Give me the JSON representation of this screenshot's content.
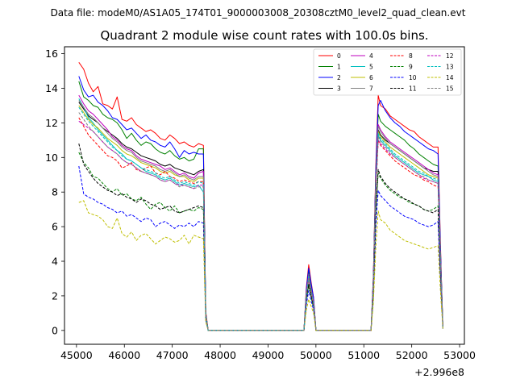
{
  "suptitle": "Data file: modeM0/AS1A05_174T01_9000003008_20308cztM0_level2_quad_clean.evt",
  "chart_data": {
    "type": "line",
    "title": "Quadrant 2 module wise count rates with 100.0s bins.",
    "xlabel": "",
    "ylabel": "",
    "x_offset_label": "+2.996e8",
    "xlim": [
      44750,
      53100
    ],
    "ylim": [
      -0.8,
      16.4
    ],
    "x_ticks": [
      45000,
      46000,
      47000,
      48000,
      49000,
      50000,
      51000,
      52000,
      53000
    ],
    "x_tick_labels": [
      "45000",
      "46000",
      "47000",
      "48000",
      "49000",
      "50000",
      "51000",
      "52000",
      "53000"
    ],
    "y_ticks": [
      0,
      2,
      4,
      6,
      8,
      10,
      12,
      14,
      16
    ],
    "y_tick_labels": [
      "0",
      "2",
      "4",
      "6",
      "8",
      "10",
      "12",
      "14",
      "16"
    ],
    "x": [
      45050,
      45150,
      45250,
      45350,
      45450,
      45550,
      45650,
      45750,
      45850,
      45950,
      46050,
      46150,
      46250,
      46350,
      46450,
      46550,
      46650,
      46750,
      46850,
      46950,
      47050,
      47150,
      47250,
      47350,
      47450,
      47550,
      47650,
      47700,
      47750,
      47800,
      47850,
      49750,
      49800,
      49850,
      49900,
      49950,
      50000,
      50050,
      51150,
      51200,
      51250,
      51300,
      51350,
      51450,
      51550,
      51650,
      51750,
      51850,
      51950,
      52050,
      52150,
      52250,
      52350,
      52450,
      52550,
      52600,
      52620,
      52650
    ],
    "series": [
      {
        "name": "0",
        "color": "#ff0000",
        "dash": "solid",
        "values": [
          15.5,
          15.1,
          14.3,
          13.8,
          14.1,
          13.1,
          13.0,
          12.8,
          13.5,
          12.2,
          12.1,
          12.3,
          11.9,
          11.7,
          11.5,
          11.6,
          11.4,
          11.1,
          11.0,
          11.3,
          11.1,
          10.8,
          10.9,
          10.7,
          10.6,
          10.8,
          10.7,
          1.1,
          0.0,
          0.0,
          0.0,
          0.0,
          2.5,
          3.8,
          2.8,
          1.9,
          0.0,
          0.0,
          0.0,
          3.2,
          9.5,
          13.6,
          13.0,
          12.8,
          12.4,
          12.2,
          12.0,
          11.8,
          11.6,
          11.5,
          11.2,
          11.0,
          10.8,
          10.6,
          10.6,
          5.0,
          3.0,
          0.2
        ]
      },
      {
        "name": "1",
        "color": "#008000",
        "dash": "solid",
        "values": [
          14.4,
          13.5,
          13.3,
          13.0,
          12.9,
          12.5,
          12.3,
          12.2,
          12.0,
          11.6,
          11.1,
          11.4,
          11.0,
          10.7,
          10.9,
          10.8,
          10.5,
          10.3,
          10.2,
          10.4,
          10.1,
          9.9,
          10.0,
          9.8,
          9.9,
          10.5,
          10.5,
          1.0,
          0.0,
          0.0,
          0.0,
          0.0,
          2.3,
          3.5,
          2.6,
          1.8,
          0.0,
          0.0,
          0.0,
          3.0,
          9.0,
          12.5,
          12.1,
          11.8,
          11.6,
          11.4,
          11.2,
          11.0,
          10.7,
          10.5,
          10.2,
          10.0,
          9.8,
          9.6,
          9.5,
          4.6,
          2.8,
          0.2
        ]
      },
      {
        "name": "2",
        "color": "#0000ff",
        "dash": "solid",
        "values": [
          14.7,
          13.9,
          13.5,
          13.6,
          13.2,
          13.0,
          12.7,
          12.3,
          12.2,
          11.9,
          11.6,
          11.7,
          11.4,
          11.1,
          11.3,
          11.0,
          10.9,
          10.7,
          10.6,
          10.9,
          10.5,
          10.0,
          10.4,
          10.2,
          10.3,
          10.2,
          10.2,
          1.0,
          0.0,
          0.0,
          0.0,
          0.0,
          2.4,
          3.6,
          2.7,
          1.9,
          0.0,
          0.0,
          0.0,
          3.1,
          9.2,
          13.0,
          13.3,
          12.7,
          12.3,
          12.0,
          11.8,
          11.5,
          11.3,
          11.1,
          10.9,
          10.7,
          10.5,
          10.4,
          10.2,
          4.8,
          2.9,
          0.2
        ]
      },
      {
        "name": "3",
        "color": "#000000",
        "dash": "solid",
        "values": [
          13.2,
          12.8,
          12.4,
          12.2,
          12.0,
          11.7,
          11.5,
          11.3,
          11.1,
          10.8,
          10.6,
          10.5,
          10.3,
          10.1,
          10.0,
          9.9,
          9.8,
          9.6,
          9.5,
          9.6,
          9.4,
          9.3,
          9.2,
          9.1,
          9.0,
          9.2,
          9.3,
          0.9,
          0.0,
          0.0,
          0.0,
          0.0,
          2.1,
          3.1,
          2.4,
          1.6,
          0.0,
          0.0,
          0.0,
          2.8,
          8.5,
          11.6,
          11.3,
          11.0,
          10.8,
          10.6,
          10.4,
          10.2,
          10.0,
          9.8,
          9.6,
          9.4,
          9.3,
          9.2,
          9.2,
          4.3,
          2.6,
          0.2
        ]
      },
      {
        "name": "4",
        "color": "#bf00bf",
        "dash": "solid",
        "values": [
          13.6,
          13.1,
          12.7,
          12.5,
          12.2,
          11.9,
          11.6,
          11.2,
          11.0,
          10.7,
          10.5,
          10.4,
          10.1,
          9.9,
          9.8,
          9.7,
          9.6,
          9.5,
          9.3,
          9.4,
          9.2,
          9.0,
          9.1,
          8.9,
          8.8,
          9.1,
          9.2,
          0.9,
          0.0,
          0.0,
          0.0,
          0.0,
          2.2,
          3.2,
          2.4,
          1.7,
          0.0,
          0.0,
          0.0,
          2.9,
          8.6,
          11.9,
          11.6,
          11.2,
          10.9,
          10.7,
          10.5,
          10.3,
          10.1,
          9.9,
          9.7,
          9.5,
          9.3,
          9.1,
          9.0,
          4.3,
          2.6,
          0.2
        ]
      },
      {
        "name": "5",
        "color": "#00bfbf",
        "dash": "solid",
        "values": [
          13.4,
          12.9,
          12.3,
          12.0,
          11.6,
          11.3,
          11.0,
          10.7,
          10.4,
          10.2,
          9.9,
          9.8,
          9.6,
          9.4,
          9.2,
          9.1,
          9.0,
          8.8,
          8.7,
          8.8,
          8.6,
          8.4,
          8.5,
          8.4,
          8.3,
          8.4,
          8.0,
          0.8,
          0.0,
          0.0,
          0.0,
          0.0,
          2.0,
          3.0,
          2.3,
          1.6,
          0.0,
          0.0,
          0.0,
          2.7,
          8.2,
          11.3,
          11.0,
          10.7,
          10.4,
          10.1,
          9.9,
          9.7,
          9.5,
          9.3,
          9.1,
          9.0,
          8.9,
          8.7,
          8.6,
          4.1,
          2.5,
          0.2
        ]
      },
      {
        "name": "6",
        "color": "#bfbf00",
        "dash": "solid",
        "values": [
          13.0,
          12.6,
          12.2,
          11.9,
          11.7,
          11.4,
          11.1,
          10.9,
          10.7,
          10.4,
          10.2,
          10.1,
          9.9,
          9.7,
          9.6,
          9.5,
          9.4,
          9.2,
          9.1,
          9.2,
          9.0,
          8.9,
          8.9,
          8.7,
          8.6,
          8.8,
          8.8,
          0.9,
          0.0,
          0.0,
          0.0,
          0.0,
          2.1,
          3.1,
          2.3,
          1.6,
          0.0,
          0.0,
          0.0,
          2.8,
          8.4,
          11.5,
          11.2,
          10.9,
          10.6,
          10.4,
          10.2,
          10.0,
          9.8,
          9.6,
          9.4,
          9.2,
          9.0,
          8.9,
          8.8,
          4.2,
          2.5,
          0.2
        ]
      },
      {
        "name": "7",
        "color": "#808080",
        "dash": "solid",
        "values": [
          13.3,
          12.9,
          12.5,
          12.3,
          12.0,
          11.7,
          11.4,
          11.1,
          10.9,
          10.6,
          10.4,
          10.3,
          10.0,
          9.8,
          9.7,
          9.6,
          9.5,
          9.3,
          9.2,
          9.3,
          9.1,
          8.9,
          9.0,
          8.8,
          8.7,
          8.9,
          8.9,
          0.9,
          0.0,
          0.0,
          0.0,
          0.0,
          2.1,
          3.2,
          2.4,
          1.6,
          0.0,
          0.0,
          0.0,
          2.8,
          8.5,
          11.8,
          11.5,
          11.1,
          10.8,
          10.6,
          10.4,
          10.2,
          10.0,
          9.8,
          9.6,
          9.4,
          9.2,
          9.0,
          8.9,
          4.2,
          2.6,
          0.2
        ]
      },
      {
        "name": "8",
        "color": "#ff0000",
        "dash": "dashed",
        "values": [
          12.3,
          11.8,
          11.3,
          11.0,
          10.7,
          10.4,
          10.1,
          10.0,
          9.8,
          9.4,
          9.5,
          9.7,
          9.3,
          9.2,
          9.4,
          9.5,
          9.1,
          9.0,
          9.2,
          8.9,
          8.8,
          8.6,
          8.7,
          8.6,
          8.5,
          8.6,
          8.6,
          0.8,
          0.0,
          0.0,
          0.0,
          0.0,
          2.0,
          3.0,
          2.2,
          1.5,
          0.0,
          0.0,
          0.0,
          2.6,
          8.0,
          11.0,
          10.7,
          10.4,
          10.1,
          9.8,
          9.6,
          9.4,
          9.2,
          9.0,
          8.9,
          8.7,
          8.6,
          8.4,
          8.3,
          4.0,
          2.4,
          0.2
        ]
      },
      {
        "name": "9",
        "color": "#008000",
        "dash": "dashed",
        "values": [
          10.3,
          9.7,
          9.4,
          8.9,
          8.8,
          8.5,
          8.2,
          8.0,
          8.2,
          7.8,
          7.9,
          7.6,
          7.5,
          7.7,
          7.3,
          7.0,
          7.3,
          7.4,
          7.1,
          6.9,
          7.2,
          6.8,
          6.9,
          7.0,
          6.9,
          7.1,
          7.0,
          0.7,
          0.0,
          0.0,
          0.0,
          0.0,
          1.7,
          2.6,
          1.9,
          1.3,
          0.0,
          0.0,
          0.0,
          2.2,
          6.8,
          9.1,
          8.8,
          8.4,
          8.1,
          7.9,
          7.7,
          7.6,
          7.4,
          7.3,
          7.2,
          7.0,
          6.9,
          7.0,
          7.2,
          3.4,
          2.1,
          0.2
        ]
      },
      {
        "name": "10",
        "color": "#0000ff",
        "dash": "dashed",
        "values": [
          9.5,
          7.9,
          7.7,
          7.6,
          7.4,
          7.3,
          7.1,
          7.0,
          6.8,
          6.9,
          6.6,
          6.7,
          6.5,
          6.3,
          6.5,
          6.4,
          6.0,
          6.2,
          6.3,
          6.1,
          5.9,
          6.1,
          6.0,
          6.2,
          6.0,
          6.3,
          6.2,
          0.6,
          0.0,
          0.0,
          0.0,
          0.0,
          1.5,
          2.3,
          1.7,
          1.2,
          0.0,
          0.0,
          0.0,
          2.0,
          6.0,
          8.1,
          7.8,
          7.5,
          7.2,
          7.0,
          6.8,
          6.6,
          6.5,
          6.4,
          6.2,
          6.1,
          6.0,
          6.1,
          6.3,
          3.0,
          1.8,
          0.1
        ]
      },
      {
        "name": "11",
        "color": "#000000",
        "dash": "dashed",
        "values": [
          10.8,
          9.6,
          9.2,
          8.8,
          8.5,
          8.3,
          8.1,
          8.0,
          7.8,
          7.9,
          7.7,
          7.6,
          7.4,
          7.6,
          7.5,
          7.3,
          7.2,
          7.0,
          7.1,
          7.2,
          6.9,
          6.8,
          6.9,
          7.0,
          7.1,
          7.2,
          7.1,
          0.7,
          0.0,
          0.0,
          0.0,
          0.0,
          1.8,
          2.7,
          2.0,
          1.4,
          0.0,
          0.0,
          0.0,
          2.3,
          7.0,
          9.3,
          8.9,
          8.5,
          8.2,
          8.0,
          7.8,
          7.6,
          7.5,
          7.3,
          7.2,
          7.0,
          6.9,
          6.8,
          7.0,
          3.3,
          2.0,
          0.2
        ]
      },
      {
        "name": "12",
        "color": "#bf00bf",
        "dash": "dashed",
        "values": [
          12.1,
          11.9,
          11.7,
          11.5,
          11.2,
          10.9,
          10.6,
          10.4,
          10.2,
          9.9,
          9.7,
          9.6,
          9.4,
          9.2,
          9.1,
          9.0,
          8.9,
          8.7,
          8.6,
          8.7,
          8.5,
          8.4,
          8.4,
          8.3,
          8.2,
          8.4,
          8.4,
          0.8,
          0.0,
          0.0,
          0.0,
          0.0,
          2.0,
          3.0,
          2.2,
          1.5,
          0.0,
          0.0,
          0.0,
          2.6,
          8.1,
          11.0,
          10.8,
          10.5,
          10.2,
          10.0,
          9.8,
          9.6,
          9.4,
          9.2,
          9.0,
          8.8,
          8.7,
          8.6,
          8.5,
          4.0,
          2.4,
          0.2
        ]
      },
      {
        "name": "13",
        "color": "#00bfbf",
        "dash": "dashed",
        "values": [
          12.9,
          12.5,
          12.1,
          11.8,
          11.5,
          11.2,
          10.9,
          10.6,
          10.4,
          10.1,
          9.9,
          9.8,
          9.6,
          9.4,
          9.3,
          9.2,
          9.1,
          8.9,
          8.8,
          8.9,
          8.7,
          8.5,
          8.6,
          8.5,
          8.4,
          8.6,
          8.5,
          0.8,
          0.0,
          0.0,
          0.0,
          0.0,
          2.0,
          3.1,
          2.3,
          1.6,
          0.0,
          0.0,
          0.0,
          2.7,
          8.3,
          11.4,
          11.1,
          10.8,
          10.5,
          10.2,
          10.0,
          9.8,
          9.6,
          9.4,
          9.2,
          9.1,
          8.9,
          8.8,
          8.7,
          4.1,
          2.5,
          0.2
        ]
      },
      {
        "name": "14",
        "color": "#bfbf00",
        "dash": "dashed",
        "values": [
          7.4,
          7.5,
          6.8,
          6.7,
          6.6,
          6.4,
          6.0,
          5.9,
          6.5,
          5.6,
          5.4,
          5.7,
          5.2,
          5.5,
          5.6,
          5.3,
          5.0,
          5.2,
          5.4,
          5.3,
          5.1,
          5.2,
          5.5,
          5.0,
          5.5,
          5.4,
          5.3,
          0.5,
          0.0,
          0.0,
          0.0,
          0.0,
          1.2,
          1.8,
          1.4,
          1.0,
          0.0,
          0.0,
          0.0,
          1.6,
          4.8,
          6.9,
          6.4,
          6.2,
          5.8,
          5.6,
          5.4,
          5.2,
          5.1,
          5.0,
          4.9,
          4.8,
          4.7,
          4.8,
          4.9,
          2.3,
          1.4,
          0.1
        ]
      },
      {
        "name": "15",
        "color": "#808080",
        "dash": "dashed",
        "values": [
          12.6,
          12.2,
          11.8,
          11.5,
          11.2,
          10.9,
          10.6,
          10.4,
          10.2,
          9.9,
          9.7,
          9.6,
          9.4,
          9.2,
          9.1,
          9.0,
          8.9,
          8.7,
          8.6,
          8.7,
          8.5,
          8.3,
          8.4,
          8.3,
          8.2,
          8.3,
          8.3,
          0.8,
          0.0,
          0.0,
          0.0,
          0.0,
          2.0,
          3.0,
          2.2,
          1.5,
          0.0,
          0.0,
          0.0,
          2.6,
          8.1,
          11.2,
          10.9,
          10.6,
          10.3,
          10.0,
          9.8,
          9.6,
          9.4,
          9.2,
          9.0,
          8.9,
          8.7,
          8.6,
          8.5,
          4.0,
          2.4,
          0.2
        ]
      }
    ]
  }
}
